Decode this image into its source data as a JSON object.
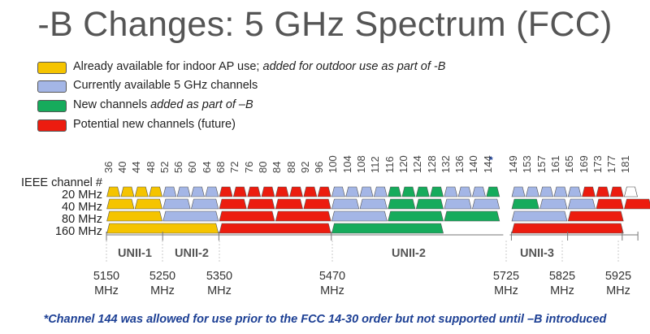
{
  "title": "-B Changes: 5 GHz Spectrum (FCC)",
  "colors": {
    "yellow": "#f5c400",
    "blue": "#a4b6e6",
    "green": "#16ab5c",
    "red": "#ec1c0f",
    "white": "#ffffff",
    "outline": "#555555",
    "footnote": "#1c3f94"
  },
  "legend": [
    {
      "color": "yellow",
      "text": "Already available for indoor AP use; ",
      "italic_text": "added for outdoor use as part of -B"
    },
    {
      "color": "blue",
      "text": "Currently available 5 GHz channels",
      "italic_text": ""
    },
    {
      "color": "green",
      "text": "New channels ",
      "italic_text": "added as part of –B"
    },
    {
      "color": "red",
      "text": "Potential new channels (future)",
      "italic_text": ""
    }
  ],
  "row_labels": [
    "IEEE channel #",
    "20 MHz",
    "40 MHz",
    "80 MHz",
    "160 MHz"
  ],
  "channels": [
    "36",
    "40",
    "44",
    "48",
    "52",
    "56",
    "60",
    "64",
    "68",
    "72",
    "76",
    "80",
    "84",
    "88",
    "92",
    "96",
    "100",
    "104",
    "108",
    "112",
    "116",
    "120",
    "124",
    "128",
    "132",
    "136",
    "140",
    "144",
    "149",
    "153",
    "157",
    "161",
    "165",
    "169",
    "173",
    "177",
    "181"
  ],
  "channel_144_marker": "*",
  "blocks": {
    "20": [
      "yellow",
      "yellow",
      "yellow",
      "yellow",
      "blue",
      "blue",
      "blue",
      "blue",
      "red",
      "red",
      "red",
      "red",
      "red",
      "red",
      "red",
      "red",
      "blue",
      "blue",
      "blue",
      "blue",
      "green",
      "green",
      "green",
      "green",
      "blue",
      "blue",
      "blue",
      "green",
      "blue",
      "blue",
      "blue",
      "blue",
      "blue",
      "red",
      "red",
      "red",
      "white"
    ],
    "40": [
      "yellow",
      "yellow",
      "blue",
      "blue",
      "red",
      "red",
      "red",
      "red",
      "blue",
      "blue",
      "green",
      "green",
      "blue",
      "blue",
      "green",
      "blue",
      "blue",
      "red",
      "red"
    ],
    "80": [
      "yellow",
      "blue",
      "red",
      "red",
      "blue",
      "green",
      "green",
      "blue",
      "red"
    ],
    "160": [
      "yellow",
      "red",
      "green",
      "red"
    ]
  },
  "bands": [
    "UNII-1",
    "UNII-2",
    "UNII-2",
    "UNII-3"
  ],
  "frequencies": [
    {
      "value": "5150",
      "unit": "MHz"
    },
    {
      "value": "5250",
      "unit": "MHz"
    },
    {
      "value": "5350",
      "unit": "MHz"
    },
    {
      "value": "5470",
      "unit": "MHz"
    },
    {
      "value": "5725",
      "unit": "MHz"
    },
    {
      "value": "5825",
      "unit": "MHz"
    },
    {
      "value": "5925",
      "unit": "MHz"
    }
  ],
  "footnote": "*Channel 144 was allowed for use prior to the FCC 14-30 order but not supported until –B introduced"
}
